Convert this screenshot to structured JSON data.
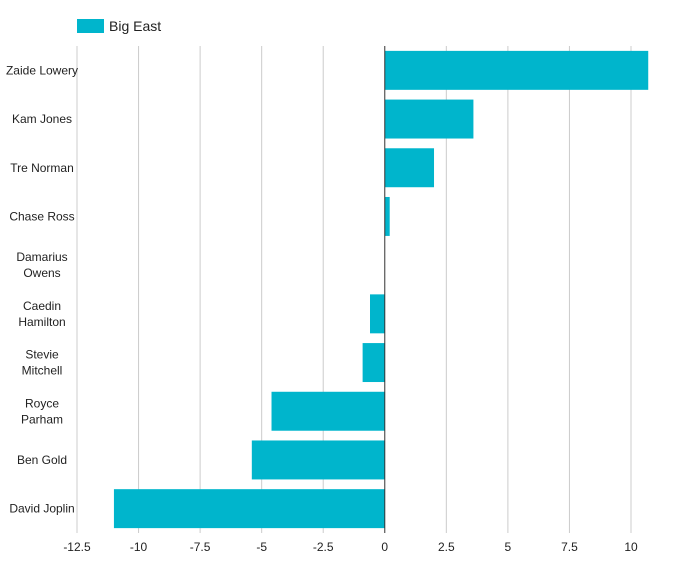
{
  "chart_data": {
    "type": "bar",
    "orientation": "horizontal",
    "categories": [
      [
        "Zaide Lowery"
      ],
      [
        "Kam Jones"
      ],
      [
        "Tre Norman"
      ],
      [
        "Chase Ross"
      ],
      [
        "Damarius",
        "Owens"
      ],
      [
        "Caedin",
        "Hamilton"
      ],
      [
        "Stevie",
        "Mitchell"
      ],
      [
        "Royce",
        "Parham"
      ],
      [
        "Ben Gold"
      ],
      [
        "David Joplin"
      ]
    ],
    "series": [
      {
        "name": "Big East",
        "color": "#00B5CC",
        "values": [
          10.7,
          3.6,
          2.0,
          0.2,
          0.0,
          -0.6,
          -0.9,
          -4.6,
          -5.4,
          -11.0
        ]
      }
    ],
    "xlim": [
      -12.5,
      10
    ],
    "xticks": [
      -12.5,
      -10,
      -7.5,
      -5,
      -2.5,
      0,
      2.5,
      5,
      7.5,
      10
    ],
    "xtick_labels": [
      "-12.5",
      "-10",
      "-7.5",
      "-5",
      "-2.5",
      "0",
      "2.5",
      "5",
      "7.5",
      "10"
    ],
    "grid": true,
    "legend_position": "top-left",
    "title": "",
    "xlabel": "",
    "ylabel": ""
  }
}
